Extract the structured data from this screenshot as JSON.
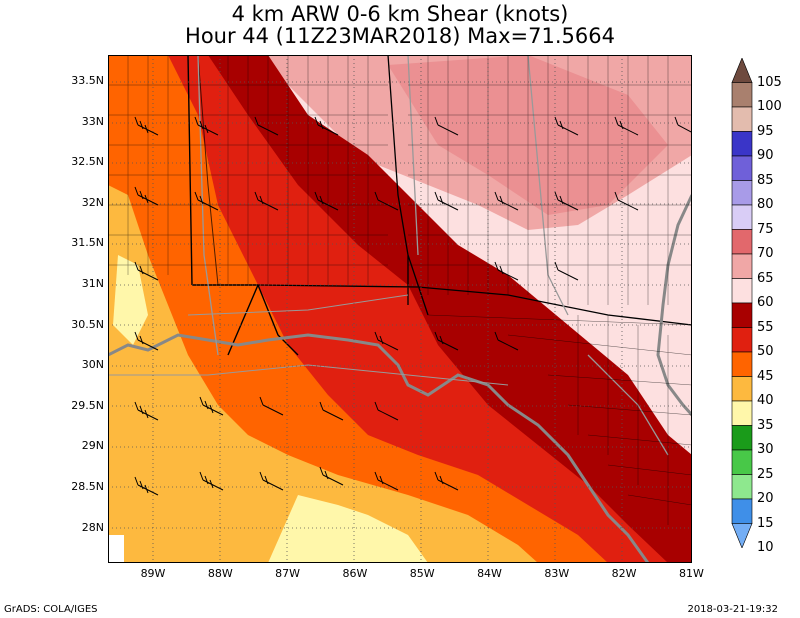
{
  "title_line1": "4 km ARW 0-6 km Shear (knots)",
  "title_line2": "Hour 44 (11Z23MAR2018) Max=71.5664",
  "latitude_labels": [
    "33.5N",
    "33N",
    "32.5N",
    "32N",
    "31.5N",
    "31N",
    "30.5N",
    "30N",
    "29.5N",
    "29N",
    "28.5N",
    "28N"
  ],
  "longitude_labels": [
    "89W",
    "88W",
    "87W",
    "86W",
    "85W",
    "84W",
    "83W",
    "82W",
    "81W"
  ],
  "colorbar": {
    "levels": [
      "105",
      "100",
      "95",
      "90",
      "85",
      "80",
      "75",
      "70",
      "65",
      "60",
      "55",
      "50",
      "45",
      "40",
      "35",
      "30",
      "25",
      "20",
      "15",
      "10"
    ],
    "colors": {
      "100": "#6e4a3e",
      "95": "#a9806e",
      "90": "#e3bcae",
      "85": "#3a35c8",
      "80": "#6f60d9",
      "75": "#a89be8",
      "70": "#d9cdf6",
      "65": "#e2686c",
      "60": "#f0a7a6",
      "55": "#fde0e0",
      "50": "#a80000",
      "45": "#e02010",
      "40": "#ff6400",
      "35": "#fdb93f",
      "30": "#fff7aa",
      "25": "#1a9b1a",
      "20": "#48c848",
      "15": "#8ee88e",
      "10": "#3f8fe8",
      "5": "#74aef5"
    }
  },
  "footer_left": "GrADS: COLA/IGES",
  "footer_right": "2018-03-21-19:32"
}
